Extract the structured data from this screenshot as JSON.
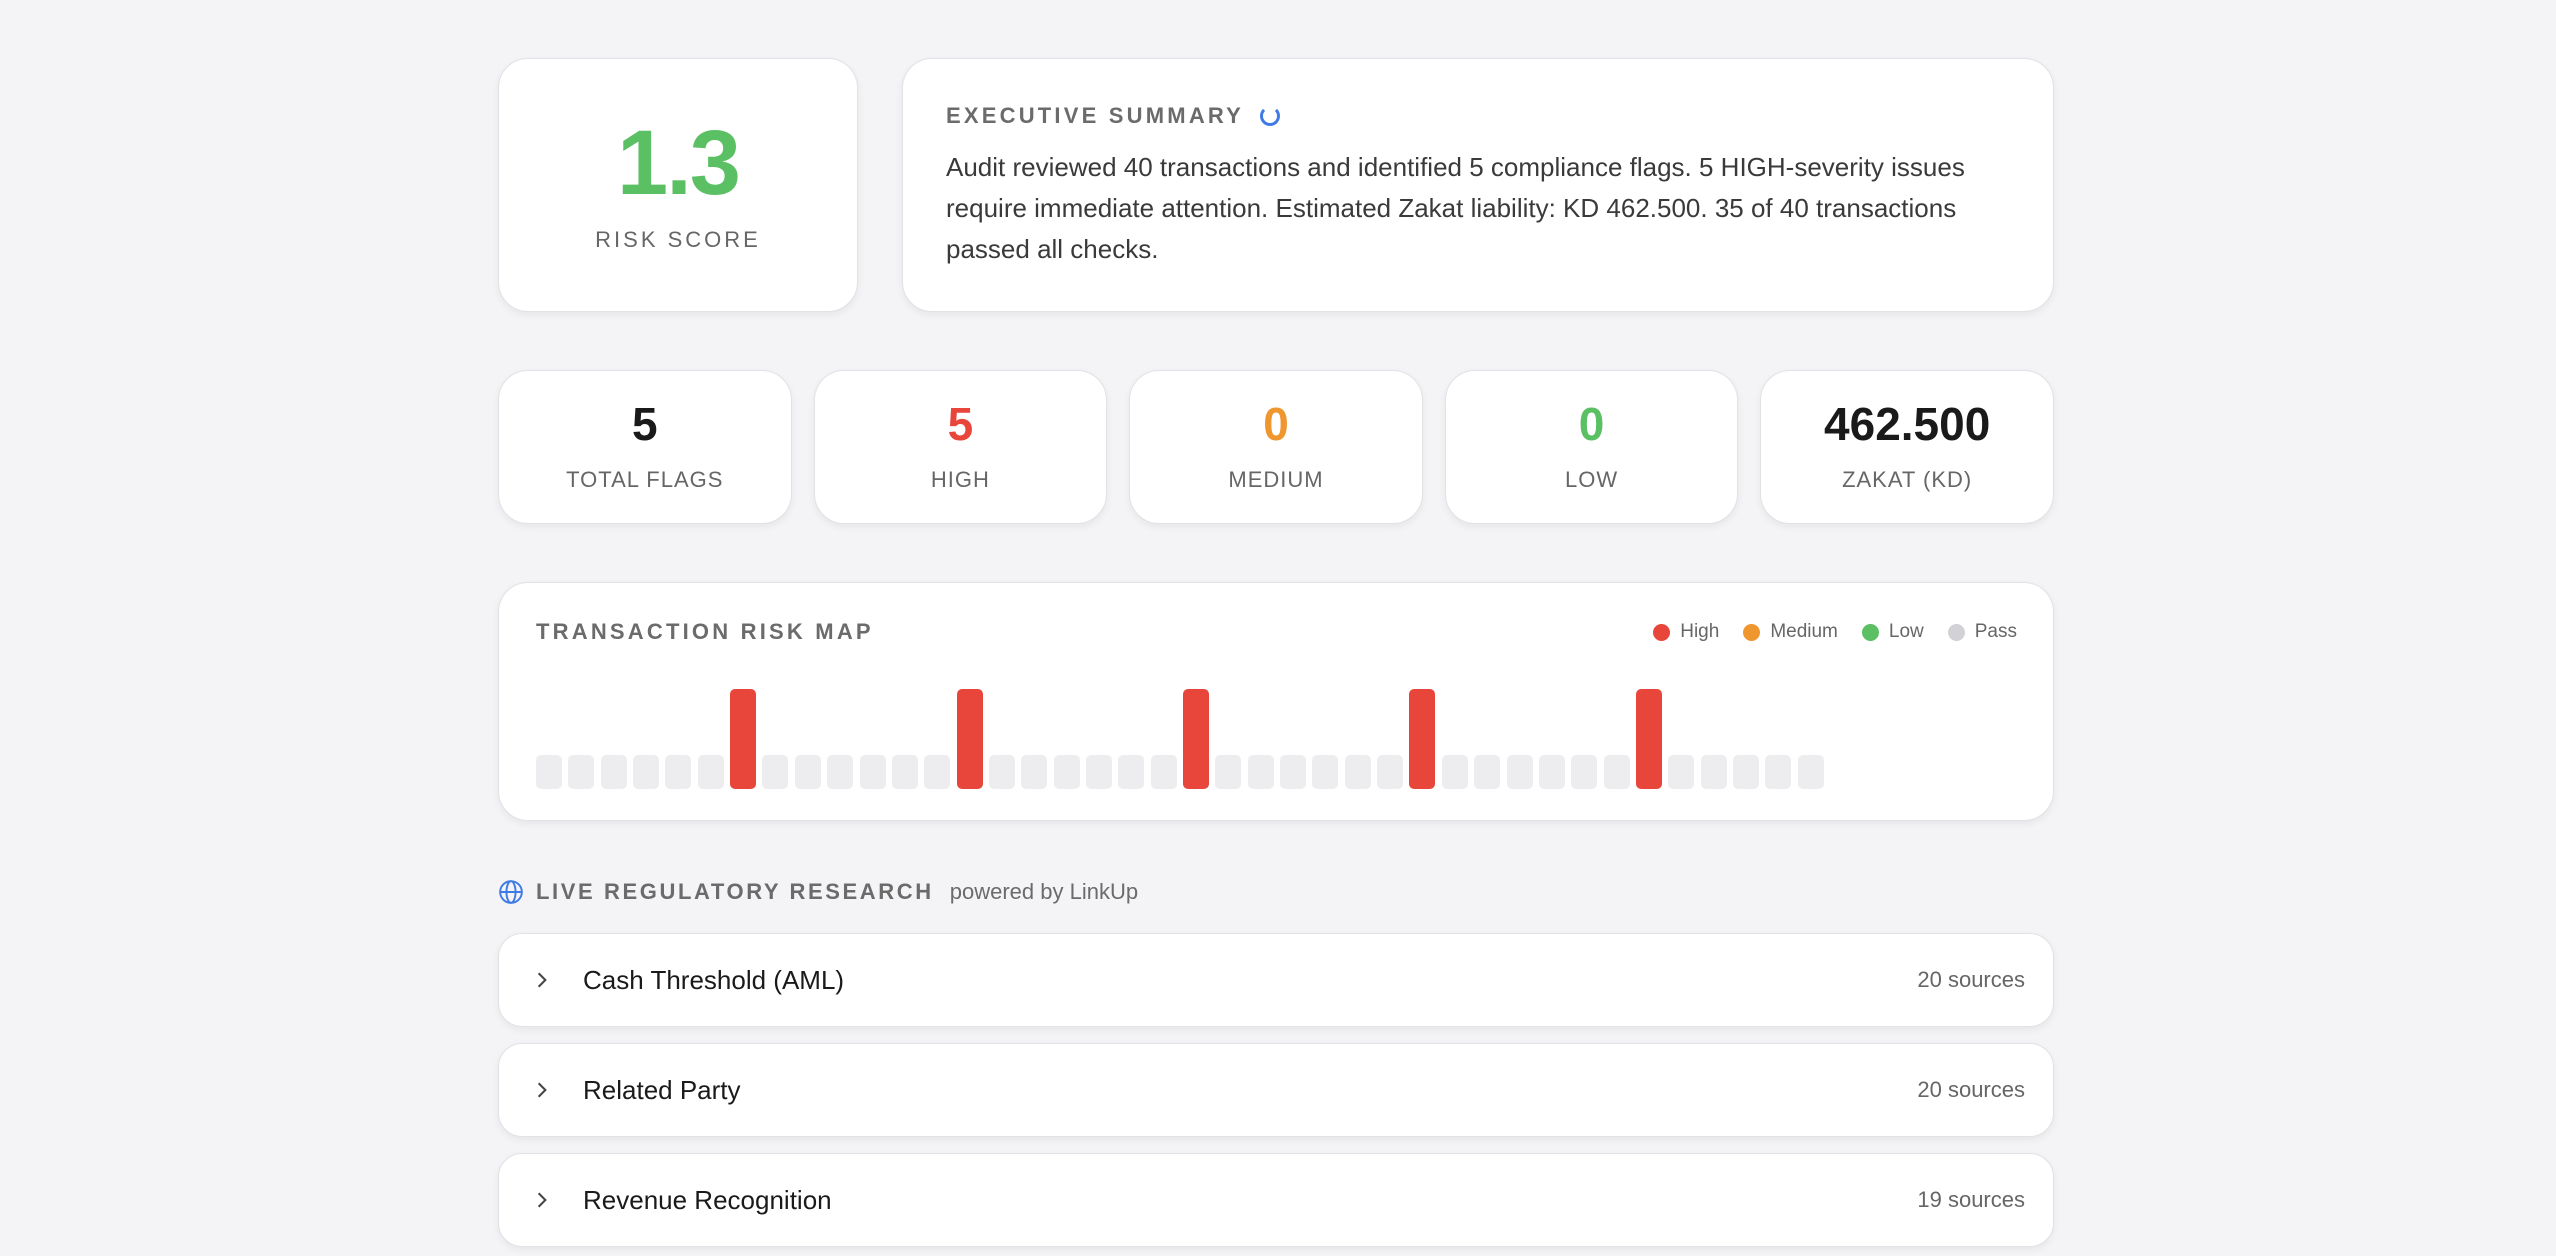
{
  "risk": {
    "value": "1.3",
    "label": "RISK SCORE",
    "color": "#5bbf63"
  },
  "summary": {
    "title": "EXECUTIVE SUMMARY",
    "text": "Audit reviewed 40 transactions and identified 5 compliance flags. 5 HIGH-severity issues require immediate attention. Estimated Zakat liability: KD 462.500. 35 of 40 transactions passed all checks."
  },
  "stats": [
    {
      "value": "5",
      "label": "TOTAL FLAGS",
      "color": "#1a1a1a"
    },
    {
      "value": "5",
      "label": "HIGH",
      "color": "#e8463b"
    },
    {
      "value": "0",
      "label": "MEDIUM",
      "color": "#f0962f"
    },
    {
      "value": "0",
      "label": "LOW",
      "color": "#5bbf63"
    },
    {
      "value": "462.500",
      "label": "ZAKAT (KD)",
      "color": "#1a1a1a"
    }
  ],
  "risk_map": {
    "title": "TRANSACTION RISK MAP",
    "legend": [
      {
        "label": "High",
        "color": "#e8463b"
      },
      {
        "label": "Medium",
        "color": "#f0962f"
      },
      {
        "label": "Low",
        "color": "#5bbf63"
      },
      {
        "label": "Pass",
        "color": "#d2d2d6"
      }
    ],
    "transactions": [
      "pass",
      "pass",
      "pass",
      "pass",
      "pass",
      "pass",
      "high",
      "pass",
      "pass",
      "pass",
      "pass",
      "pass",
      "pass",
      "high",
      "pass",
      "pass",
      "pass",
      "pass",
      "pass",
      "pass",
      "high",
      "pass",
      "pass",
      "pass",
      "pass",
      "pass",
      "pass",
      "high",
      "pass",
      "pass",
      "pass",
      "pass",
      "pass",
      "pass",
      "high",
      "pass",
      "pass",
      "pass",
      "pass",
      "pass"
    ]
  },
  "research": {
    "title": "LIVE REGULATORY RESEARCH",
    "subtitle": "powered by LinkUp",
    "topics": [
      {
        "name": "Cash Threshold (AML)",
        "sources": "20 sources"
      },
      {
        "name": "Related Party",
        "sources": "20 sources"
      },
      {
        "name": "Revenue Recognition",
        "sources": "19 sources"
      }
    ]
  },
  "icons": {
    "summary_status": "loading-spinner-icon",
    "research": "globe-icon",
    "expand": "chevron-right-icon"
  }
}
